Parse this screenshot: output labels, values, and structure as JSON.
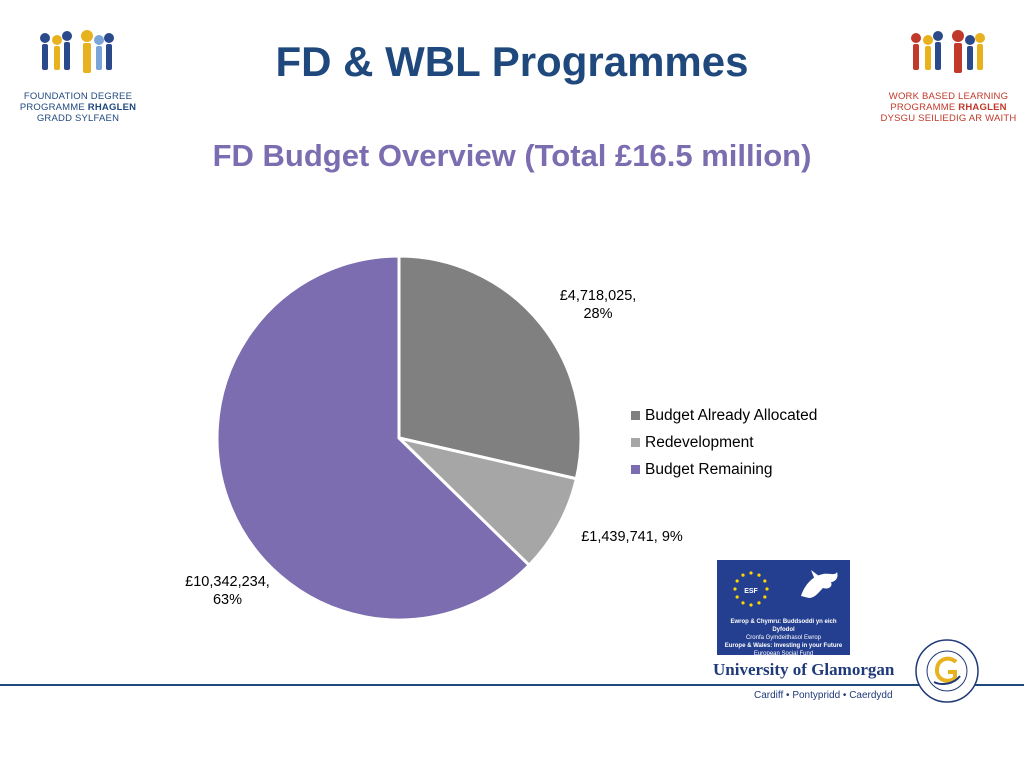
{
  "header": {
    "title": "FD & WBL Programmes",
    "subtitle": "FD Budget Overview (Total £16.5 million)"
  },
  "logos": {
    "left": {
      "line1": "FOUNDATION DEGREE",
      "line2a": "PROGRAMME ",
      "line2b": "RHAGLEN",
      "line3": "GRADD SYLFAEN",
      "color": "#1f497d"
    },
    "right": {
      "line1": "WORK BASED LEARNING",
      "line2a": "PROGRAMME ",
      "line2b": "RHAGLEN",
      "line3": "DYSGU SEILIEDIG AR WAITH",
      "color": "#c0392b"
    }
  },
  "chart_data": {
    "type": "pie",
    "title": "FD Budget Overview (Total £16.5 million)",
    "legend_position": "right",
    "start_angle_deg": 0,
    "direction": "clockwise",
    "slices": [
      {
        "name": "Budget Already Allocated",
        "value": 4718025,
        "label": "£4,718,025,",
        "label2": "28%",
        "color": "#808080"
      },
      {
        "name": "Redevelopment",
        "value": 1439741,
        "label": "£1,439,741, 9%",
        "label2": "",
        "color": "#a6a6a6"
      },
      {
        "name": "Budget Remaining",
        "value": 10342234,
        "label": "£10,342,234,",
        "label2": "63%",
        "color": "#7b6db0"
      }
    ]
  },
  "footer": {
    "esf_line1": "Ewrop & Chymru: Buddsoddi yn eich Dyfodol",
    "esf_line2": "Cronfa Gymdeithasol Ewrop",
    "esf_line3": "Europe & Wales: Investing in your Future",
    "esf_line4": "European Social Fund",
    "esf_flag_text": "ESF",
    "university": "University of Glamorgan",
    "places": "Cardiff • Pontypridd • Caerdydd",
    "accent": "#1f497d"
  }
}
